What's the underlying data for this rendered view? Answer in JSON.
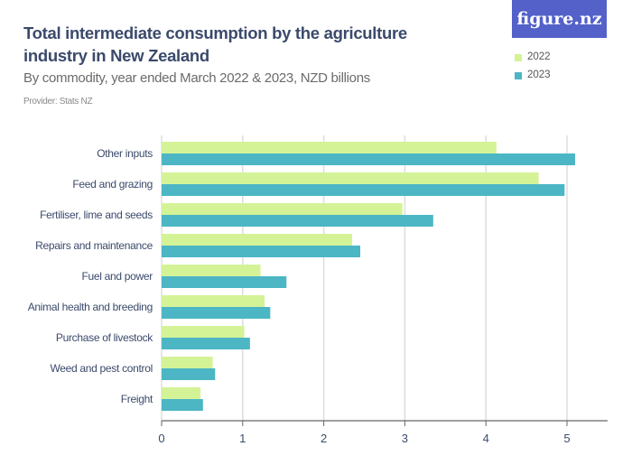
{
  "header": {
    "title": "Total intermediate consumption by the agriculture industry in New Zealand",
    "subtitle": "By commodity, year ended March 2022 & 2023, NZD billions",
    "provider": "Provider: Stats NZ",
    "logo": "figure.nz"
  },
  "colors": {
    "s2022": "#d4f397",
    "s2023": "#4cb6c5",
    "axis": "#666666",
    "grid": "#dddddd",
    "label": "#3b4a6b"
  },
  "legend": [
    {
      "label": "2022",
      "color": "#d4f397"
    },
    {
      "label": "2023",
      "color": "#4cb6c5"
    }
  ],
  "chart_data": {
    "type": "bar",
    "orientation": "horizontal",
    "title": "Total intermediate consumption by the agriculture industry in New Zealand",
    "subtitle": "By commodity, year ended March 2022 & 2023, NZD billions",
    "xlabel": "",
    "ylabel": "",
    "xlim": [
      0,
      5.5
    ],
    "xticks": [
      0,
      1,
      2,
      3,
      4,
      5
    ],
    "grid": true,
    "legend_position": "top-right",
    "categories": [
      "Other inputs",
      "Feed and grazing",
      "Fertiliser, lime and seeds",
      "Repairs and maintenance",
      "Fuel and power",
      "Animal health and breeding",
      "Purchase of livestock",
      "Weed and pest control",
      "Freight"
    ],
    "series": [
      {
        "name": "2022",
        "values": [
          4.13,
          4.65,
          2.97,
          2.35,
          1.22,
          1.27,
          1.02,
          0.63,
          0.48
        ]
      },
      {
        "name": "2023",
        "values": [
          5.1,
          4.97,
          3.35,
          2.45,
          1.54,
          1.34,
          1.09,
          0.66,
          0.51
        ]
      }
    ]
  }
}
